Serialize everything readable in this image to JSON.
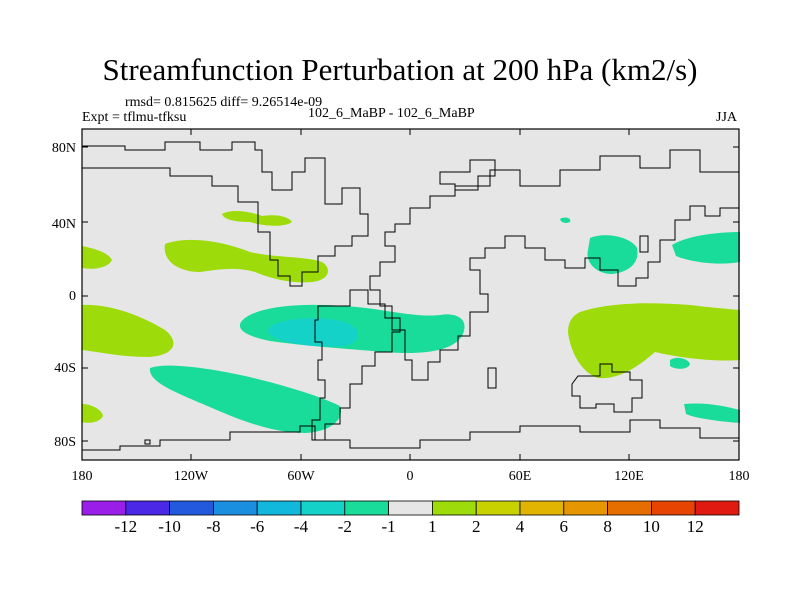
{
  "title": "Streamfunction Perturbation at 200 hPa (km2/s)",
  "stats": "rmsd= 0.815625 diff= 9.26514e-09",
  "experiment": "Expt = tflmu-tfksu",
  "comparison": "102_6_MaBP - 102_6_MaBP",
  "season": "JJA",
  "lat_ticks": [
    "80N",
    "40N",
    "0",
    "40S",
    "80S"
  ],
  "lon_ticks": [
    "180",
    "120W",
    "60W",
    "0",
    "60E",
    "120E",
    "180"
  ],
  "colorbar": {
    "labels": [
      "-12",
      "-10",
      "-8",
      "-6",
      "-4",
      "-2",
      "-1",
      "1",
      "2",
      "4",
      "6",
      "8",
      "10",
      "12"
    ],
    "colors": [
      "#9a1ee8",
      "#4a28e6",
      "#2359dd",
      "#1a8fe0",
      "#12b8dc",
      "#14d2c8",
      "#1adc9a",
      "#e6e6e6",
      "#9ddc0a",
      "#c8d200",
      "#e0b400",
      "#e69600",
      "#e66e00",
      "#e64400",
      "#e01a10"
    ]
  },
  "fills": {
    "background": "#e6e6e6",
    "pos_1_2": "#9ddc0a",
    "neg_1_2": "#1adc9a",
    "neg_2_4": "#14d2c8"
  }
}
